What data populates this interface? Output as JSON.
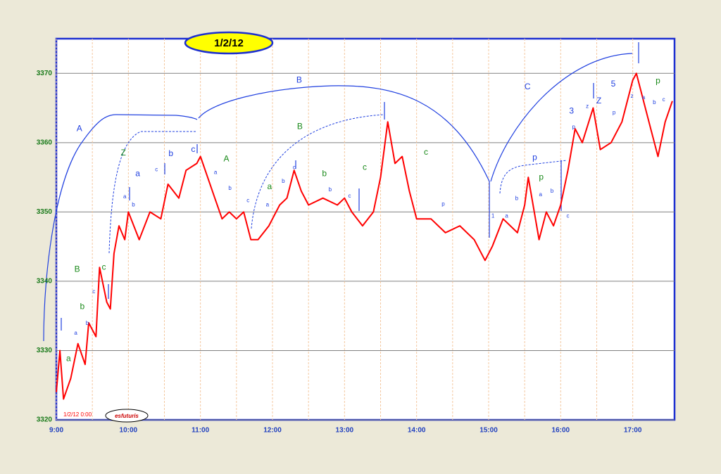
{
  "chart_data": {
    "type": "line",
    "title": "1/2/12",
    "timestamp": "1/2/12 0:00",
    "watermark": "esfuturis",
    "color": "#ff0000",
    "xlim": [
      9,
      17.58
    ],
    "ylim": [
      3320,
      3375
    ],
    "yticks": [
      3320,
      3330,
      3340,
      3350,
      3360,
      3370
    ],
    "xticks": [
      {
        "value": 9,
        "label": "9:00"
      },
      {
        "value": 10,
        "label": "10:00"
      },
      {
        "value": 11,
        "label": "11:00"
      },
      {
        "value": 12,
        "label": "12:00"
      },
      {
        "value": 13,
        "label": "13:00"
      },
      {
        "value": 14,
        "label": "14:00"
      },
      {
        "value": 15,
        "label": "15:00"
      },
      {
        "value": 16,
        "label": "16:00"
      },
      {
        "value": 17,
        "label": "17:00"
      }
    ],
    "grid": true,
    "x": [
      9.0,
      9.05,
      9.1,
      9.2,
      9.3,
      9.4,
      9.45,
      9.55,
      9.6,
      9.7,
      9.75,
      9.8,
      9.87,
      9.95,
      10.0,
      10.15,
      10.3,
      10.45,
      10.55,
      10.7,
      10.8,
      10.95,
      11.0,
      11.1,
      11.2,
      11.3,
      11.4,
      11.5,
      11.6,
      11.7,
      11.8,
      11.95,
      12.1,
      12.2,
      12.3,
      12.4,
      12.5,
      12.7,
      12.9,
      13.0,
      13.1,
      13.25,
      13.4,
      13.5,
      13.6,
      13.7,
      13.8,
      13.9,
      14.0,
      14.2,
      14.4,
      14.6,
      14.8,
      14.95,
      15.05,
      15.2,
      15.4,
      15.5,
      15.55,
      15.7,
      15.8,
      15.9,
      16.0,
      16.1,
      16.2,
      16.3,
      16.45,
      16.55,
      16.7,
      16.85,
      17.0,
      17.05,
      17.15,
      17.25,
      17.35,
      17.45,
      17.55
    ],
    "values": [
      3324,
      3330,
      3323,
      3326,
      3331,
      3328,
      3334,
      3332,
      3342,
      3337,
      3336,
      3344,
      3348,
      3346,
      3350,
      3346,
      3350,
      3349,
      3354,
      3352,
      3356,
      3357,
      3358,
      3355,
      3352,
      3349,
      3350,
      3349,
      3350,
      3346,
      3346,
      3348,
      3351,
      3352,
      3356,
      3353,
      3351,
      3352,
      3351,
      3352,
      3350,
      3348,
      3350,
      3355,
      3363,
      3357,
      3358,
      3353,
      3349,
      3349,
      3347,
      3348,
      3346,
      3343,
      3345,
      3349,
      3347,
      3351,
      3355,
      3346,
      3350,
      3348,
      3351,
      3356,
      3362,
      3360,
      3365,
      3359,
      3360,
      3363,
      3369,
      3370,
      3366,
      3362,
      3358,
      3363,
      3366
    ],
    "annotations": [
      {
        "text": "A",
        "x": 9.32,
        "y": 3362,
        "color": "#2040e0",
        "size": "big"
      },
      {
        "text": "B",
        "x": 12.37,
        "y": 3369,
        "color": "#2040e0",
        "size": "big"
      },
      {
        "text": "C",
        "x": 15.54,
        "y": 3368,
        "color": "#2040e0",
        "size": "big"
      },
      {
        "text": "B",
        "x": 9.29,
        "y": 3341.7,
        "color": "#1a8a1a",
        "size": "big"
      },
      {
        "text": "Z",
        "x": 9.93,
        "y": 3358.5,
        "color": "#1a8a1a",
        "size": "big"
      },
      {
        "text": "A",
        "x": 11.36,
        "y": 3357.6,
        "color": "#1a8a1a",
        "size": "big"
      },
      {
        "text": "B",
        "x": 12.38,
        "y": 3362.3,
        "color": "#1a8a1a",
        "size": "big"
      },
      {
        "text": "c",
        "x": 13.28,
        "y": 3356.4,
        "color": "#1a8a1a",
        "size": "big"
      },
      {
        "text": "c",
        "x": 14.13,
        "y": 3358.6,
        "color": "#1a8a1a",
        "size": "big"
      },
      {
        "text": "b",
        "x": 9.36,
        "y": 3336.3,
        "color": "#1a8a1a",
        "size": "big"
      },
      {
        "text": "a",
        "x": 9.17,
        "y": 3328.8,
        "color": "#1a8a1a",
        "size": "big"
      },
      {
        "text": "c",
        "x": 9.66,
        "y": 3342,
        "color": "#1a8a1a",
        "size": "big"
      },
      {
        "text": "a",
        "x": 11.96,
        "y": 3353.6,
        "color": "#1a8a1a",
        "size": "big"
      },
      {
        "text": "b",
        "x": 12.72,
        "y": 3355.5,
        "color": "#1a8a1a",
        "size": "big"
      },
      {
        "text": "p",
        "x": 15.73,
        "y": 3355,
        "color": "#1a8a1a",
        "size": "big"
      },
      {
        "text": "p",
        "x": 17.35,
        "y": 3368.9,
        "color": "#1a8a1a",
        "size": "big"
      },
      {
        "text": "a",
        "x": 10.13,
        "y": 3355.5,
        "color": "#2040e0",
        "size": "big"
      },
      {
        "text": "b",
        "x": 10.59,
        "y": 3358.4,
        "color": "#2040e0",
        "size": "big"
      },
      {
        "text": "c",
        "x": 10.9,
        "y": 3359,
        "color": "#2040e0",
        "size": "big"
      },
      {
        "text": "a",
        "x": 11.21,
        "y": 3355.7,
        "color": "#2040e0",
        "size": "small"
      },
      {
        "text": "b",
        "x": 11.41,
        "y": 3353.4,
        "color": "#2040e0",
        "size": "small"
      },
      {
        "text": "c",
        "x": 11.66,
        "y": 3351.6,
        "color": "#2040e0",
        "size": "small"
      },
      {
        "text": "a",
        "x": 11.93,
        "y": 3351,
        "color": "#2040e0",
        "size": "small"
      },
      {
        "text": "b",
        "x": 12.15,
        "y": 3354.4,
        "color": "#2040e0",
        "size": "small"
      },
      {
        "text": "c",
        "x": 12.3,
        "y": 3356.4,
        "color": "#2040e0",
        "size": "small"
      },
      {
        "text": "b",
        "x": 12.8,
        "y": 3353.2,
        "color": "#2040e0",
        "size": "small"
      },
      {
        "text": "c",
        "x": 13.07,
        "y": 3352.3,
        "color": "#2040e0",
        "size": "small"
      },
      {
        "text": "p",
        "x": 14.37,
        "y": 3351.1,
        "color": "#2040e0",
        "size": "small"
      },
      {
        "text": "b",
        "x": 15.39,
        "y": 3351.9,
        "color": "#2040e0",
        "size": "small"
      },
      {
        "text": "a",
        "x": 15.72,
        "y": 3352.5,
        "color": "#2040e0",
        "size": "small"
      },
      {
        "text": "b",
        "x": 15.88,
        "y": 3353,
        "color": "#2040e0",
        "size": "small"
      },
      {
        "text": "p",
        "x": 15.64,
        "y": 3357.8,
        "color": "#2040e0",
        "size": "big"
      },
      {
        "text": "c",
        "x": 16.1,
        "y": 3349.4,
        "color": "#2040e0",
        "size": "small"
      },
      {
        "text": "p",
        "x": 16.18,
        "y": 3362.2,
        "color": "#2040e0",
        "size": "small"
      },
      {
        "text": "3",
        "x": 16.15,
        "y": 3364.5,
        "color": "#2040e0",
        "size": "big"
      },
      {
        "text": "z",
        "x": 16.37,
        "y": 3365.2,
        "color": "#2040e0",
        "size": "small"
      },
      {
        "text": "Z",
        "x": 16.53,
        "y": 3366,
        "color": "#2040e0",
        "size": "big"
      },
      {
        "text": "p",
        "x": 16.74,
        "y": 3364.3,
        "color": "#2040e0",
        "size": "small"
      },
      {
        "text": "5",
        "x": 16.73,
        "y": 3368.4,
        "color": "#2040e0",
        "size": "big"
      },
      {
        "text": "z",
        "x": 16.99,
        "y": 3366.7,
        "color": "#2040e0",
        "size": "small"
      },
      {
        "text": "a",
        "x": 17.15,
        "y": 3366.5,
        "color": "#2040e0",
        "size": "small"
      },
      {
        "text": "b",
        "x": 17.3,
        "y": 3365.8,
        "color": "#2040e0",
        "size": "small"
      },
      {
        "text": "c",
        "x": 17.43,
        "y": 3366.2,
        "color": "#2040e0",
        "size": "small"
      },
      {
        "text": "a",
        "x": 9.27,
        "y": 3332.5,
        "color": "#2040e0",
        "size": "small"
      },
      {
        "text": "b",
        "x": 9.43,
        "y": 3333.9,
        "color": "#2040e0",
        "size": "small"
      },
      {
        "text": "c",
        "x": 9.52,
        "y": 3338.5,
        "color": "#2040e0",
        "size": "small"
      },
      {
        "text": "a",
        "x": 9.95,
        "y": 3352.2,
        "color": "#2040e0",
        "size": "small"
      },
      {
        "text": "b",
        "x": 10.07,
        "y": 3351,
        "color": "#2040e0",
        "size": "small"
      },
      {
        "text": "c",
        "x": 10.39,
        "y": 3356.1,
        "color": "#2040e0",
        "size": "small"
      },
      {
        "text": "1",
        "x": 15.06,
        "y": 3349.4,
        "color": "#2040e0",
        "size": "small"
      },
      {
        "text": "a",
        "x": 15.25,
        "y": 3349.4,
        "color": "#2040e0",
        "size": "small"
      }
    ]
  }
}
